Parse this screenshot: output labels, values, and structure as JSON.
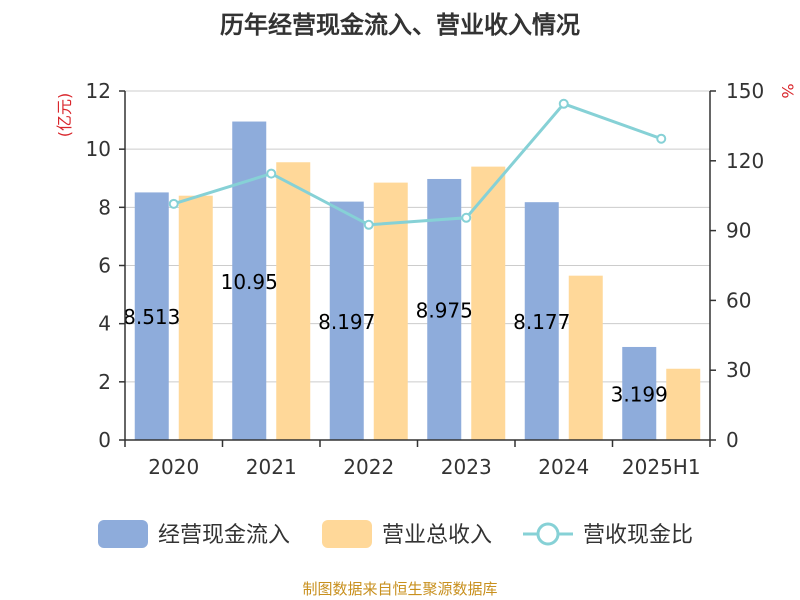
{
  "chart_data": {
    "type": "bar",
    "title": "历年经营现金流入、营业收入情况",
    "categories": [
      "2020",
      "2021",
      "2022",
      "2023",
      "2024",
      "2025H1"
    ],
    "series": [
      {
        "name": "经营现金流入",
        "kind": "bar",
        "axis": "left",
        "color": "#8eacdb",
        "values": [
          8.513,
          10.95,
          8.197,
          8.975,
          8.177,
          3.199
        ],
        "labels": [
          "8.513",
          "10.95",
          "8.197",
          "8.975",
          "8.177",
          "3.199"
        ]
      },
      {
        "name": "营业总收入",
        "kind": "bar",
        "axis": "left",
        "color": "#ffd899",
        "values": [
          8.4,
          9.55,
          8.85,
          9.4,
          5.65,
          2.45
        ]
      },
      {
        "name": "营收现金比",
        "kind": "line",
        "axis": "right",
        "color": "#86d1d6",
        "values": [
          101.5,
          114.5,
          92.5,
          95.5,
          144.5,
          129.5
        ]
      }
    ],
    "y_left": {
      "unit": "(亿元)",
      "min": 0,
      "max": 12,
      "ticks": [
        0,
        2,
        4,
        6,
        8,
        10,
        12
      ]
    },
    "y_right": {
      "unit": "%",
      "min": 0,
      "max": 150,
      "ticks": [
        0,
        30,
        60,
        90,
        120,
        150
      ]
    },
    "grid": true,
    "legend": "bottom"
  },
  "source": "制图数据来自恒生聚源数据库"
}
